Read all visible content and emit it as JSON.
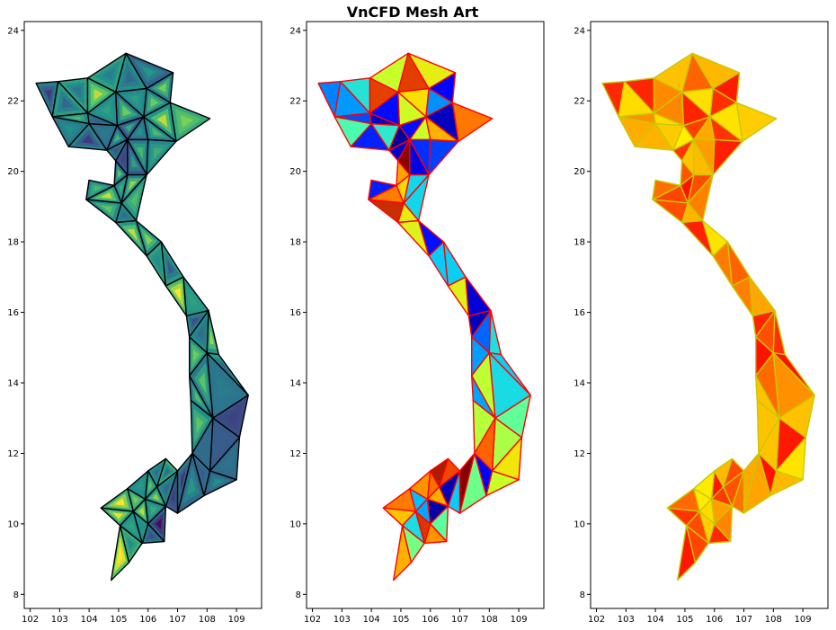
{
  "title": "VnCFD Mesh Art",
  "chart_data": [
    {
      "type": "mesh",
      "xlim": [
        101.8,
        109.85
      ],
      "ylim": [
        7.6,
        24.25
      ],
      "xticks": [
        102,
        103,
        104,
        105,
        106,
        107,
        108,
        109
      ],
      "yticks": [
        8,
        10,
        12,
        14,
        16,
        18,
        20,
        22,
        24
      ],
      "grid": false,
      "edge_color": "#000000",
      "fill_style": "contour",
      "colormap": "viridis"
    },
    {
      "type": "mesh",
      "xlim": [
        101.8,
        109.85
      ],
      "ylim": [
        7.6,
        24.25
      ],
      "xticks": [
        102,
        103,
        104,
        105,
        106,
        107,
        108,
        109
      ],
      "yticks": [
        8,
        10,
        12,
        14,
        16,
        18,
        20,
        22,
        24
      ],
      "grid": false,
      "edge_color": "#ff0000",
      "fill_style": "flat",
      "colormap": "jet"
    },
    {
      "type": "mesh",
      "xlim": [
        101.8,
        109.85
      ],
      "ylim": [
        7.6,
        24.25
      ],
      "xticks": [
        102,
        103,
        104,
        105,
        106,
        107,
        108,
        109
      ],
      "yticks": [
        8,
        10,
        12,
        14,
        16,
        18,
        20,
        22,
        24
      ],
      "grid": false,
      "edge_color": "#c8c800",
      "fill_style": "flat",
      "colormap": "autumn"
    }
  ],
  "mesh": {
    "nodes": [
      [
        102.2,
        22.5
      ],
      [
        102.95,
        22.55
      ],
      [
        103.95,
        22.65
      ],
      [
        105.25,
        23.35
      ],
      [
        106.85,
        22.8
      ],
      [
        106.75,
        21.95
      ],
      [
        108.1,
        21.5
      ],
      [
        106.95,
        20.85
      ],
      [
        106.0,
        20.9
      ],
      [
        105.95,
        19.9
      ],
      [
        105.3,
        19.9
      ],
      [
        104.85,
        19.6
      ],
      [
        104.0,
        19.75
      ],
      [
        103.9,
        19.2
      ],
      [
        105.1,
        19.1
      ],
      [
        104.9,
        18.55
      ],
      [
        105.6,
        18.6
      ],
      [
        106.45,
        18.0
      ],
      [
        105.95,
        17.6
      ],
      [
        106.6,
        16.75
      ],
      [
        107.2,
        17.0
      ],
      [
        107.3,
        15.9
      ],
      [
        108.05,
        16.05
      ],
      [
        107.4,
        15.3
      ],
      [
        108.0,
        14.85
      ],
      [
        107.4,
        14.2
      ],
      [
        108.4,
        14.8
      ],
      [
        109.4,
        13.65
      ],
      [
        107.45,
        13.5
      ],
      [
        108.2,
        13.0
      ],
      [
        109.1,
        12.45
      ],
      [
        107.5,
        12.0
      ],
      [
        108.1,
        11.5
      ],
      [
        109.0,
        11.25
      ],
      [
        107.0,
        11.5
      ],
      [
        106.0,
        11.5
      ],
      [
        106.6,
        11.85
      ],
      [
        106.3,
        11.05
      ],
      [
        107.9,
        10.8
      ],
      [
        107.0,
        10.3
      ],
      [
        104.4,
        10.45
      ],
      [
        105.3,
        11.0
      ],
      [
        105.9,
        10.7
      ],
      [
        106.6,
        10.5
      ],
      [
        105.5,
        10.35
      ],
      [
        106.0,
        10.0
      ],
      [
        105.05,
        9.95
      ],
      [
        106.55,
        9.5
      ],
      [
        105.8,
        9.45
      ],
      [
        105.35,
        8.9
      ],
      [
        104.75,
        8.4
      ],
      [
        102.75,
        21.55
      ],
      [
        103.3,
        20.7
      ],
      [
        104.0,
        21.35
      ],
      [
        104.95,
        21.3
      ],
      [
        104.9,
        22.25
      ],
      [
        105.95,
        22.35
      ],
      [
        105.85,
        21.55
      ],
      [
        103.95,
        21.65
      ],
      [
        104.6,
        20.6
      ],
      [
        104.9,
        20.3
      ],
      [
        105.3,
        20.9
      ]
    ],
    "triangles": [
      [
        0,
        1,
        51
      ],
      [
        1,
        2,
        58
      ],
      [
        1,
        51,
        58
      ],
      [
        2,
        55,
        58
      ],
      [
        2,
        3,
        55
      ],
      [
        3,
        56,
        55
      ],
      [
        3,
        4,
        56
      ],
      [
        4,
        5,
        56
      ],
      [
        5,
        6,
        7
      ],
      [
        5,
        7,
        57
      ],
      [
        5,
        57,
        56
      ],
      [
        55,
        56,
        57
      ],
      [
        55,
        57,
        54
      ],
      [
        55,
        54,
        58
      ],
      [
        58,
        54,
        53
      ],
      [
        58,
        53,
        51
      ],
      [
        51,
        53,
        52
      ],
      [
        53,
        54,
        59
      ],
      [
        53,
        59,
        52
      ],
      [
        54,
        61,
        59
      ],
      [
        54,
        57,
        61
      ],
      [
        57,
        8,
        61
      ],
      [
        57,
        7,
        8
      ],
      [
        8,
        7,
        9
      ],
      [
        8,
        9,
        61
      ],
      [
        61,
        9,
        10
      ],
      [
        61,
        10,
        60
      ],
      [
        60,
        59,
        61
      ],
      [
        60,
        10,
        11
      ],
      [
        10,
        9,
        14
      ],
      [
        10,
        14,
        11
      ],
      [
        11,
        14,
        13
      ],
      [
        11,
        13,
        12
      ],
      [
        12,
        13,
        11
      ],
      [
        9,
        16,
        14
      ],
      [
        14,
        16,
        15
      ],
      [
        14,
        15,
        13
      ],
      [
        16,
        17,
        18
      ],
      [
        16,
        15,
        18
      ],
      [
        18,
        17,
        19
      ],
      [
        17,
        20,
        19
      ],
      [
        19,
        20,
        21
      ],
      [
        20,
        22,
        21
      ],
      [
        21,
        22,
        23
      ],
      [
        22,
        24,
        23
      ],
      [
        22,
        26,
        24
      ],
      [
        23,
        24,
        25
      ],
      [
        24,
        26,
        27
      ],
      [
        24,
        27,
        29
      ],
      [
        24,
        29,
        25
      ],
      [
        25,
        29,
        28
      ],
      [
        29,
        27,
        30
      ],
      [
        28,
        29,
        31
      ],
      [
        29,
        30,
        32
      ],
      [
        29,
        32,
        31
      ],
      [
        30,
        33,
        32
      ],
      [
        31,
        32,
        38
      ],
      [
        32,
        33,
        38
      ],
      [
        31,
        38,
        39
      ],
      [
        31,
        39,
        34
      ],
      [
        34,
        39,
        43
      ],
      [
        34,
        43,
        37
      ],
      [
        34,
        37,
        36
      ],
      [
        35,
        36,
        37
      ],
      [
        35,
        37,
        42
      ],
      [
        37,
        43,
        42
      ],
      [
        41,
        42,
        44
      ],
      [
        40,
        41,
        44
      ],
      [
        40,
        44,
        46
      ],
      [
        41,
        35,
        42
      ],
      [
        42,
        43,
        45
      ],
      [
        42,
        45,
        44
      ],
      [
        43,
        47,
        45
      ],
      [
        45,
        47,
        48
      ],
      [
        44,
        45,
        48
      ],
      [
        44,
        48,
        46
      ],
      [
        46,
        48,
        49
      ],
      [
        46,
        49,
        50
      ]
    ]
  }
}
